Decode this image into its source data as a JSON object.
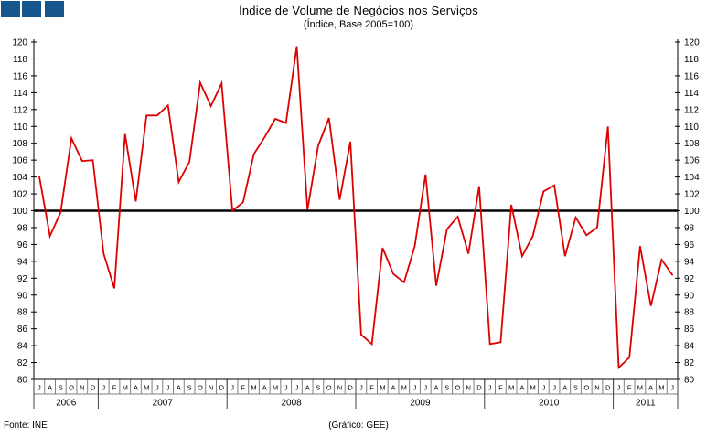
{
  "title": "Índice de Volume de Negócios nos Serviços",
  "subtitle": "(Índice, Base 2005=100)",
  "logo": {
    "color": "#15568E",
    "square_count": 3
  },
  "footer": {
    "source": "Fonte: INE",
    "credit": "(Gráfico: GEE)"
  },
  "chart_data": {
    "type": "line",
    "title": "Índice de Volume de Negócios nos Serviços",
    "subtitle": "(Índice, Base 2005=100)",
    "grid": false,
    "legend": "none",
    "y_axis": {
      "min": 80,
      "max": 120,
      "step": 2,
      "sides": "both"
    },
    "reference_line": {
      "value": 100,
      "color": "#000000"
    },
    "x_years": [
      {
        "label": "2006",
        "months": [
          "J",
          "A",
          "S",
          "O",
          "N",
          "D"
        ]
      },
      {
        "label": "2007",
        "months": [
          "J",
          "F",
          "M",
          "A",
          "M",
          "J",
          "J",
          "A",
          "S",
          "O",
          "N",
          "D"
        ]
      },
      {
        "label": "2008",
        "months": [
          "J",
          "F",
          "M",
          "A",
          "M",
          "J",
          "J",
          "A",
          "S",
          "O",
          "N",
          "D"
        ]
      },
      {
        "label": "2009",
        "months": [
          "J",
          "F",
          "M",
          "A",
          "M",
          "J",
          "J",
          "A",
          "S",
          "O",
          "N",
          "D"
        ]
      },
      {
        "label": "2010",
        "months": [
          "J",
          "F",
          "M",
          "A",
          "M",
          "J",
          "J",
          "A",
          "S",
          "O",
          "N",
          "D"
        ]
      },
      {
        "label": "2011",
        "months": [
          "J",
          "F",
          "M",
          "A",
          "M",
          "J"
        ]
      }
    ],
    "series": [
      {
        "name": "Índice de Volume de Negócios nos Serviços",
        "color": "#DD0000",
        "values": [
          104.1,
          97.0,
          99.8,
          108.6,
          105.9,
          106.0,
          94.9,
          90.8,
          109.1,
          101.1,
          111.3,
          111.3,
          112.5,
          103.4,
          105.8,
          115.2,
          112.4,
          115.1,
          100.0,
          101.0,
          106.7,
          108.7,
          110.9,
          110.4,
          119.5,
          100.1,
          107.7,
          111.0,
          101.3,
          108.2,
          85.3,
          84.2,
          95.6,
          92.5,
          91.5,
          95.8,
          104.3,
          91.1,
          97.8,
          99.3,
          94.9,
          102.9,
          84.2,
          84.4,
          100.7,
          94.6,
          97.0,
          102.3,
          103.0,
          94.6,
          99.2,
          97.1,
          98.0,
          110.0,
          81.4,
          82.6,
          95.8,
          88.7,
          94.2,
          92.4
        ]
      }
    ]
  }
}
